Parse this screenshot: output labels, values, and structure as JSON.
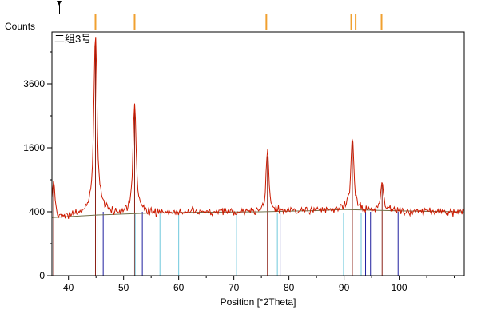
{
  "window": {
    "background": "#ffffff",
    "frame_color": "#000000"
  },
  "chart_data": {
    "type": "line",
    "title": "二组3号",
    "xlabel": "Position [°2Theta]",
    "ylabel": "Counts",
    "x_axis": {
      "min": 37.0,
      "max": 111.8,
      "major_ticks": [
        40,
        50,
        60,
        70,
        80,
        90,
        100
      ],
      "minor_ticks": [
        45,
        55,
        65,
        75,
        85,
        95,
        105,
        110
      ]
    },
    "y_axis": {
      "scale": "sqrt",
      "max": 5814,
      "major_ticks": [
        0,
        400,
        1600,
        3600
      ],
      "minor_ticks": [
        100,
        900,
        2500,
        4900
      ]
    },
    "measured_scan": {
      "name": "measured-intensity",
      "color": "#cc1a00",
      "peaks": [
        {
          "position": 37.3,
          "net_counts": 520
        },
        {
          "position": 44.9,
          "net_counts": 5400
        },
        {
          "position": 52.0,
          "net_counts": 2450
        },
        {
          "position": 76.1,
          "net_counts": 1100
        },
        {
          "position": 91.5,
          "net_counts": 1480
        },
        {
          "position": 96.9,
          "net_counts": 480
        }
      ],
      "background_curve": {
        "color": "#70704a",
        "points": [
          [
            37,
            330
          ],
          [
            45,
            360
          ],
          [
            55,
            385
          ],
          [
            65,
            395
          ],
          [
            75,
            400
          ],
          [
            85,
            415
          ],
          [
            90,
            430
          ],
          [
            95,
            420
          ],
          [
            105,
            405
          ],
          [
            111.8,
            400
          ]
        ]
      }
    },
    "peak_position_ticks": {
      "color": "#f0a030",
      "positions": [
        44.9,
        52.0,
        75.9,
        91.3,
        92.1,
        96.8
      ]
    },
    "reference_patterns": [
      {
        "name": "matched-phase",
        "color": "#8b2218",
        "lines": [
          {
            "position": 37.3,
            "height_counts": 800
          },
          {
            "position": 44.9,
            "height_counts": 5400
          },
          {
            "position": 52.0,
            "height_counts": 2700
          },
          {
            "position": 76.1,
            "height_counts": 1400
          },
          {
            "position": 91.5,
            "height_counts": 1800
          },
          {
            "position": 96.9,
            "height_counts": 800
          }
        ]
      },
      {
        "name": "candidate-phase-blue",
        "color": "#1f1f9e",
        "lines": [
          {
            "position": 46.3,
            "height_counts": 400
          },
          {
            "position": 53.4,
            "height_counts": 400
          },
          {
            "position": 78.4,
            "height_counts": 400
          },
          {
            "position": 93.9,
            "height_counts": 400
          },
          {
            "position": 94.8,
            "height_counts": 400
          },
          {
            "position": 99.8,
            "height_counts": 400
          }
        ]
      },
      {
        "name": "candidate-phase-cyan",
        "color": "#6fc8dc",
        "lines": [
          {
            "position": 45.2,
            "height_counts": 380
          },
          {
            "position": 52.1,
            "height_counts": 380
          },
          {
            "position": 56.6,
            "height_counts": 380
          },
          {
            "position": 60.0,
            "height_counts": 380
          },
          {
            "position": 70.5,
            "height_counts": 380
          },
          {
            "position": 77.9,
            "height_counts": 380
          },
          {
            "position": 89.9,
            "height_counts": 380
          },
          {
            "position": 93.1,
            "height_counts": 380
          }
        ]
      }
    ],
    "cursor_marker_position": 38.4
  }
}
